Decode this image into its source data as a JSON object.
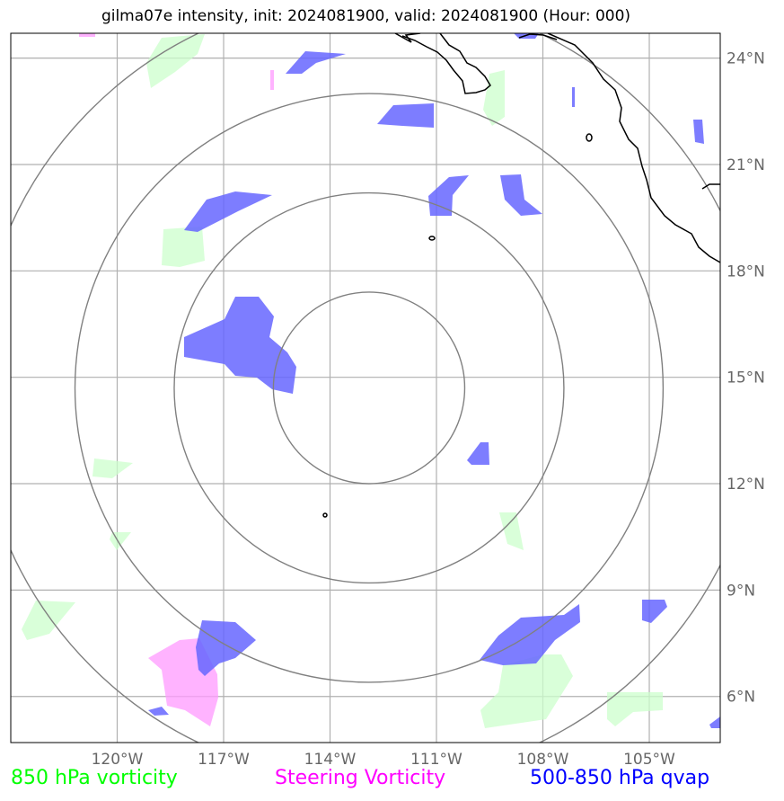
{
  "title": "gilma07e intensity, init: 2024081900, valid: 2024081900 (Hour: 000)",
  "map": {
    "lon_range": [
      -123,
      -103
    ],
    "lat_range": [
      4.7,
      24.7
    ],
    "lon_ticks": [
      {
        "value": -120,
        "label": "120°W"
      },
      {
        "value": -117,
        "label": "117°W"
      },
      {
        "value": -114,
        "label": "114°W"
      },
      {
        "value": -111,
        "label": "111°W"
      },
      {
        "value": -108,
        "label": "108°W"
      },
      {
        "value": -105,
        "label": "105°W"
      }
    ],
    "lat_ticks": [
      {
        "value": 24,
        "label": "24°N"
      },
      {
        "value": 21,
        "label": "21°N"
      },
      {
        "value": 18,
        "label": "18°N"
      },
      {
        "value": 15,
        "label": "15°N"
      },
      {
        "value": 12,
        "label": "12°N"
      },
      {
        "value": 9,
        "label": "9°N"
      },
      {
        "value": 6,
        "label": "6°N"
      }
    ],
    "grid": true,
    "storm_center": {
      "lon": -112.9,
      "lat": 14.7
    },
    "range_rings_deg_lat": [
      2.7,
      5.5,
      8.3,
      11.1
    ],
    "colors": {
      "vort850": "#ccffcc",
      "steering": "#ff99ff",
      "qvap": "#6666ff",
      "coast": "#000000",
      "ring": "#808080",
      "grid": "#b0b0b0"
    }
  },
  "legend": {
    "vort850": {
      "label": "850 hPa vorticity",
      "color": "#00ff00"
    },
    "steering": {
      "label": "Steering Vorticity",
      "color": "#ff00ff"
    },
    "qvap": {
      "label": "500-850 hPa qvap",
      "color": "#0000ff"
    }
  }
}
